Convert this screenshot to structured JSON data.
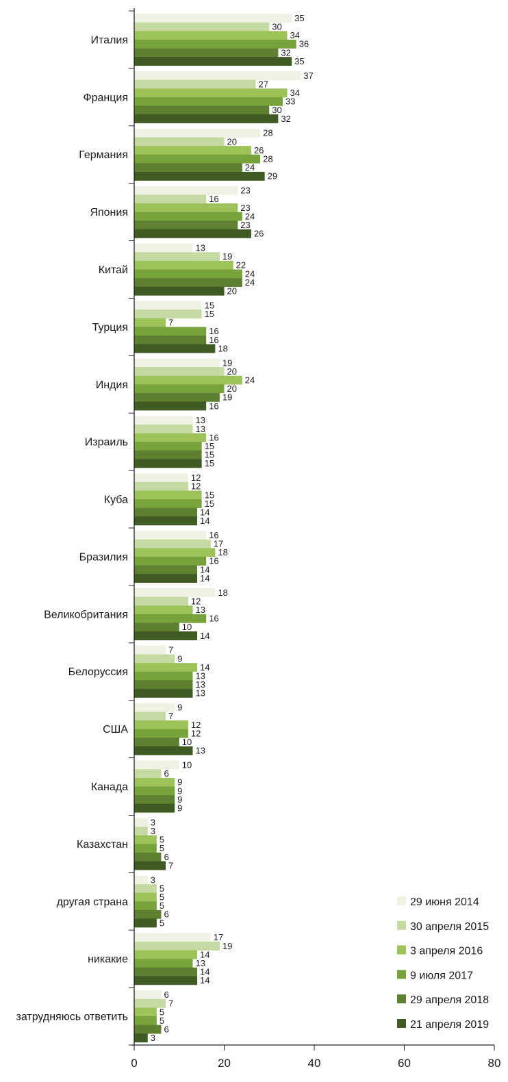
{
  "chart_data": {
    "type": "bar",
    "orientation": "horizontal",
    "categories": [
      "Италия",
      "Франция",
      "Германия",
      "Япония",
      "Китай",
      "Турция",
      "Индия",
      "Израиль",
      "Куба",
      "Бразилия",
      "Великобритания",
      "Белоруссия",
      "США",
      "Канада",
      "Казахстан",
      "другая страна",
      "никакие",
      "затрудняюсь ответить"
    ],
    "series": [
      {
        "name": "29 июня 2014",
        "color": "#eef2e2",
        "values": [
          35,
          37,
          28,
          23,
          13,
          15,
          19,
          13,
          12,
          16,
          18,
          7,
          9,
          10,
          3,
          3,
          17,
          6
        ]
      },
      {
        "name": "30 апреля 2015",
        "color": "#c5d9a2",
        "values": [
          30,
          27,
          20,
          16,
          19,
          15,
          20,
          13,
          12,
          17,
          12,
          9,
          7,
          6,
          3,
          5,
          19,
          7
        ]
      },
      {
        "name": "3 апреля 2016",
        "color": "#9ec25a",
        "values": [
          34,
          34,
          26,
          23,
          22,
          7,
          24,
          16,
          15,
          18,
          13,
          14,
          12,
          9,
          5,
          5,
          14,
          5
        ]
      },
      {
        "name": "9 июля 2017",
        "color": "#78a23c",
        "values": [
          36,
          33,
          28,
          24,
          24,
          16,
          20,
          15,
          15,
          16,
          16,
          13,
          12,
          9,
          5,
          5,
          13,
          5
        ]
      },
      {
        "name": "29 апреля 2018",
        "color": "#5f8030",
        "values": [
          32,
          30,
          24,
          23,
          24,
          16,
          19,
          15,
          14,
          14,
          10,
          13,
          10,
          9,
          6,
          6,
          14,
          6
        ]
      },
      {
        "name": "21 апреля 2019",
        "color": "#3f5a22",
        "values": [
          35,
          32,
          29,
          26,
          20,
          18,
          16,
          15,
          14,
          14,
          14,
          13,
          13,
          9,
          7,
          5,
          14,
          3
        ]
      }
    ],
    "xlim": [
      0,
      80
    ],
    "xticks": [
      0,
      20,
      40,
      60,
      80
    ],
    "title": "",
    "xlabel": "",
    "ylabel": "",
    "grid": false,
    "legend_position": "bottom-right",
    "data_labels": true
  }
}
